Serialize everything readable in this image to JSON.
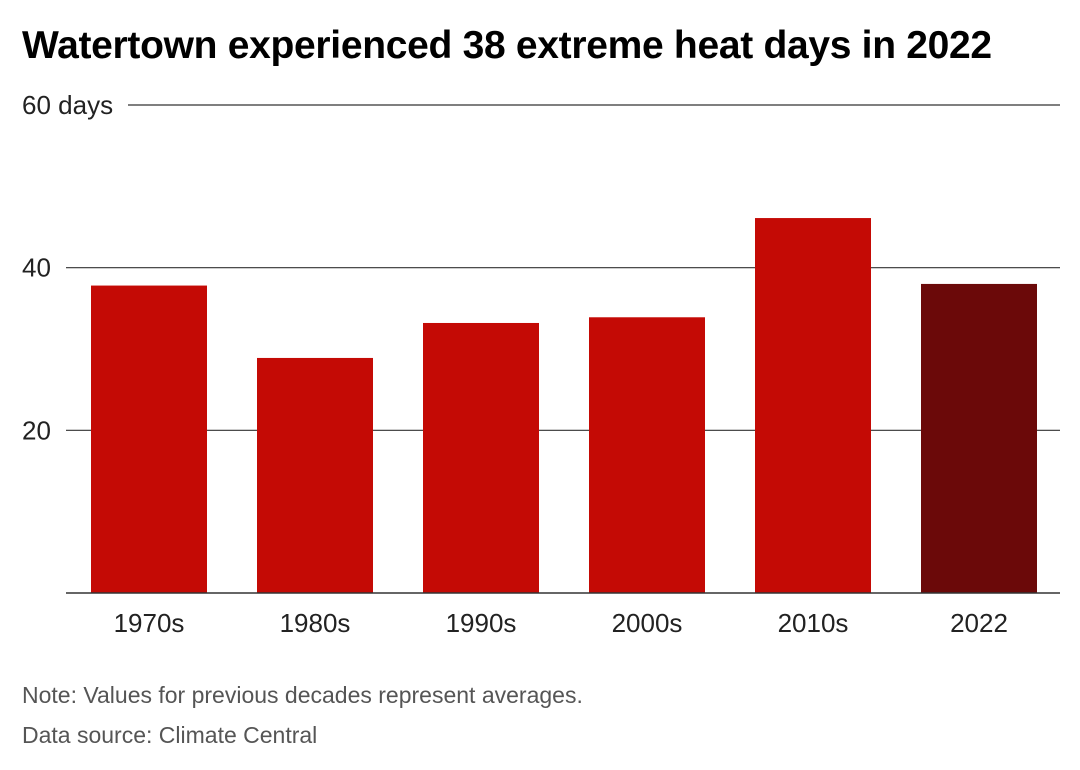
{
  "title": "Watertown experienced 38 extreme heat days in 2022",
  "note": "Note: Values for previous decades represent averages.",
  "source": "Data source: Climate Central",
  "colors": {
    "bar": "#c40a05",
    "highlight": "#6b0909",
    "gridline": "#333333"
  },
  "chart_data": {
    "type": "bar",
    "title": "Watertown experienced 38 extreme heat days in 2022",
    "categories": [
      "1970s",
      "1980s",
      "1990s",
      "2000s",
      "2010s",
      "2022"
    ],
    "values": [
      37.8,
      28.9,
      33.2,
      33.9,
      46.1,
      38
    ],
    "highlight": "2022",
    "ylim": [
      0,
      60
    ],
    "yticks": [
      {
        "value": 20,
        "label": "20"
      },
      {
        "value": 40,
        "label": "40"
      },
      {
        "value": 60,
        "label": "60 days"
      }
    ],
    "xlabel": "",
    "ylabel": "",
    "grid": true,
    "legend": "none"
  }
}
